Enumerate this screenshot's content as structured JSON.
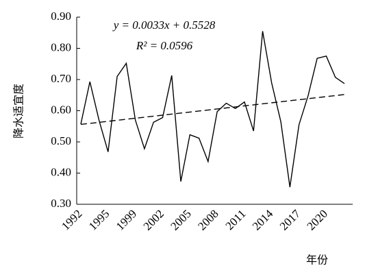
{
  "chart_data": {
    "type": "line",
    "ylabel": "降水适宜度",
    "xlabel": "年份",
    "categories": [
      "1992",
      null,
      null,
      "1995",
      null,
      null,
      "1999",
      null,
      null,
      "2002",
      null,
      null,
      "2005",
      null,
      null,
      "2008",
      null,
      null,
      "2011",
      null,
      null,
      "2014",
      null,
      null,
      "2017",
      null,
      null,
      "2020",
      null,
      null
    ],
    "values": [
      0.557,
      0.693,
      0.57,
      0.468,
      0.71,
      0.752,
      0.57,
      0.478,
      0.563,
      0.578,
      0.713,
      0.373,
      0.523,
      0.512,
      0.437,
      0.597,
      0.624,
      0.607,
      0.628,
      0.535,
      0.855,
      0.688,
      0.565,
      0.355,
      0.555,
      0.648,
      0.768,
      0.775,
      0.707,
      0.687
    ],
    "color": "#000000",
    "trendline": {
      "slope": 0.0033,
      "intercept": 0.5528,
      "equation": "y = 0.0033x + 0.5528",
      "r2": "R² = 0.0596"
    },
    "ylim": [
      0.3,
      0.9
    ],
    "yticks": [
      {
        "value": 0.3,
        "label": "0.30"
      },
      {
        "value": 0.4,
        "label": "0.40"
      },
      {
        "value": 0.5,
        "label": "0.50"
      },
      {
        "value": 0.6,
        "label": "0.60"
      },
      {
        "value": 0.7,
        "label": "0.70"
      },
      {
        "value": 0.8,
        "label": "0.80"
      },
      {
        "value": 0.9,
        "label": "0.90"
      }
    ],
    "grid": false
  }
}
